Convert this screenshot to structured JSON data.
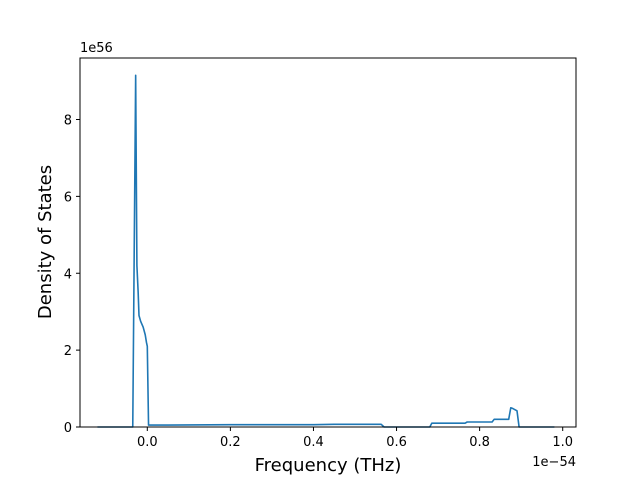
{
  "chart_data": {
    "type": "line",
    "xlabel": "Frequency (THz)",
    "ylabel": "Density of States",
    "x_offset_text": "1e−54",
    "y_offset_text": "1e56",
    "x_scale_factor": 1e-54,
    "y_scale_factor": 1e+56,
    "xlim": [
      -0.162,
      1.032
    ],
    "ylim": [
      0,
      9.6
    ],
    "xticks": [
      0.0,
      0.2,
      0.4,
      0.6,
      0.8,
      1.0
    ],
    "xtick_labels": [
      "0.0",
      "0.2",
      "0.4",
      "0.6",
      "0.8",
      "1.0"
    ],
    "yticks": [
      0,
      2,
      4,
      6,
      8
    ],
    "ytick_labels": [
      "0",
      "2",
      "4",
      "6",
      "8"
    ],
    "grid": false,
    "series": [
      {
        "color": "#1f77b4",
        "x": [
          -0.12,
          -0.035,
          -0.028,
          -0.025,
          -0.022,
          -0.02,
          -0.016,
          -0.01,
          -0.005,
          -0.002,
          0.0,
          0.003,
          0.05,
          0.2,
          0.4,
          0.45,
          0.5,
          0.563,
          0.57,
          0.68,
          0.685,
          0.7,
          0.765,
          0.77,
          0.8,
          0.83,
          0.835,
          0.845,
          0.86,
          0.87,
          0.875,
          0.88,
          0.885,
          0.89,
          0.895,
          0.9,
          0.95,
          0.98
        ],
        "y": [
          0.0,
          0.0,
          9.15,
          4.2,
          3.5,
          2.9,
          2.75,
          2.6,
          2.4,
          2.2,
          2.1,
          0.05,
          0.05,
          0.06,
          0.06,
          0.07,
          0.07,
          0.07,
          0.0,
          0.0,
          0.1,
          0.1,
          0.1,
          0.13,
          0.13,
          0.13,
          0.2,
          0.2,
          0.2,
          0.2,
          0.5,
          0.48,
          0.45,
          0.42,
          0.0,
          0.0,
          0.0,
          0.0
        ]
      }
    ]
  }
}
